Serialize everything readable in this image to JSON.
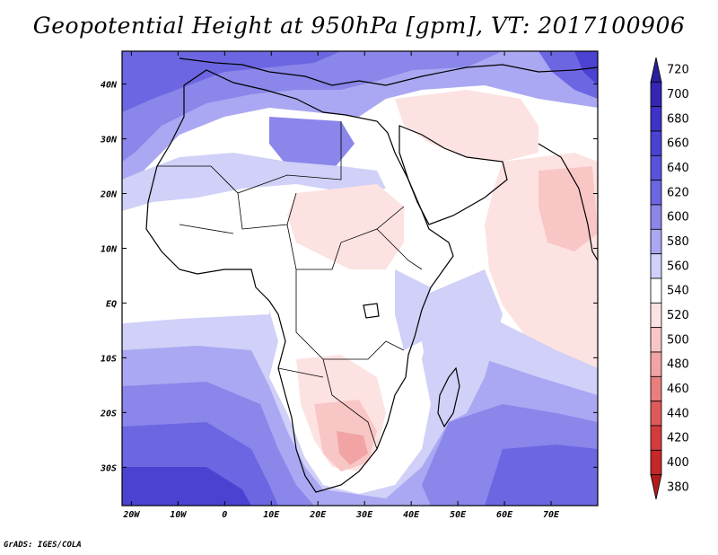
{
  "title": "Geopotential Height at 950hPa [gpm], VT: 2017100906",
  "credit": "GrADS: IGES/COLA",
  "map": {
    "variable": "Geopotential Height",
    "level": "950hPa",
    "units": "gpm",
    "valid_time": "2017100906",
    "lon_range": [
      -22,
      80
    ],
    "lat_range": [
      -37,
      46
    ],
    "lon_ticks": [
      {
        "value": -20,
        "label": "20W"
      },
      {
        "value": -10,
        "label": "10W"
      },
      {
        "value": 0,
        "label": "0"
      },
      {
        "value": 10,
        "label": "10E"
      },
      {
        "value": 20,
        "label": "20E"
      },
      {
        "value": 30,
        "label": "30E"
      },
      {
        "value": 40,
        "label": "40E"
      },
      {
        "value": 50,
        "label": "50E"
      },
      {
        "value": 60,
        "label": "60E"
      },
      {
        "value": 70,
        "label": "70E"
      }
    ],
    "lat_ticks": [
      {
        "value": 40,
        "label": "40N"
      },
      {
        "value": 30,
        "label": "30N"
      },
      {
        "value": 20,
        "label": "20N"
      },
      {
        "value": 10,
        "label": "10N"
      },
      {
        "value": 0,
        "label": "EQ"
      },
      {
        "value": -10,
        "label": "10S"
      },
      {
        "value": -20,
        "label": "20S"
      },
      {
        "value": -30,
        "label": "30S"
      }
    ]
  },
  "colorbar": {
    "levels": [
      720,
      700,
      680,
      660,
      640,
      620,
      600,
      580,
      560,
      540,
      520,
      500,
      480,
      460,
      440,
      420,
      400,
      380
    ],
    "colors": [
      "#2a209c",
      "#3425b4",
      "#3e32c8",
      "#4b42d2",
      "#5a52dc",
      "#6c66e2",
      "#8a86ea",
      "#aaa8f2",
      "#d0d0f8",
      "#ffffff",
      "#fde2e2",
      "#f9c6c6",
      "#f2a4a4",
      "#ea7e7e",
      "#e05a5a",
      "#d43c3c",
      "#c42828",
      "#b01c1c"
    ]
  }
}
